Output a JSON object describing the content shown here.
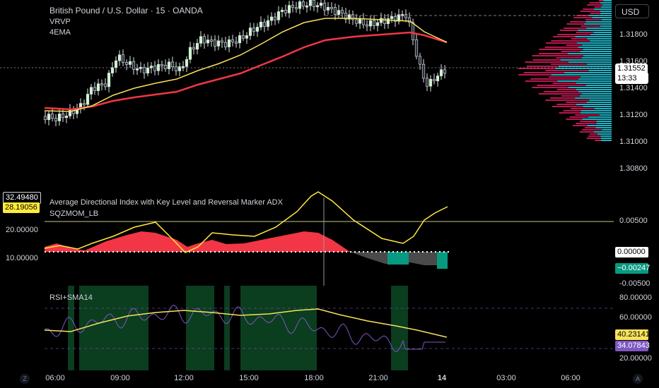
{
  "header": {
    "symbol_title": "British Pound / U.S. Dollar · 15 · OANDA",
    "indicator_vrvp": "VRVP",
    "indicator_ema": "4EMA"
  },
  "currency_button": "USD",
  "price_axis": {
    "ticks": [
      "1.31800",
      "1.31600",
      "1.31400",
      "1.31200",
      "1.31000",
      "1.30800"
    ],
    "current_price": "1.31552",
    "countdown": "13:33",
    "current_price_color": "#ffffff"
  },
  "adx_pane": {
    "title": "Average Directional Index with Key Level and Reversal Marker ADX",
    "subtitle": "SQZMOM_LB",
    "left_axis": [
      "20.00000",
      "10.00000"
    ],
    "adx_value": "32.49480",
    "adx_value2": "28.19056",
    "right_axis": [
      "0.00500",
      "-0.00500"
    ],
    "zero_label": "0.00000",
    "mom_value": "−0.00247",
    "key_level": 23
  },
  "rsi_pane": {
    "title": "RSI+SMA14",
    "right_axis": [
      "80.00000",
      "60.00000",
      "20.00000"
    ],
    "rsi_value": "40.23141",
    "sma_value": "34.07843"
  },
  "time_axis": {
    "ticks": [
      "06:00",
      "09:00",
      "12:00",
      "15:00",
      "18:00",
      "21:00",
      "14",
      "03:00",
      "06:00"
    ]
  },
  "bottom_icons": {
    "left": "Z",
    "right": "A"
  },
  "colors": {
    "ema_fast": "#f7e25c",
    "ema_slow": "#f23645",
    "bull": "#c8f7c5",
    "bear": "#2a2e39",
    "vol_up": "#26c6da",
    "vol_down": "#e91e63",
    "adx_line": "#ffeb3b",
    "mom_red": "#f23645",
    "mom_teal": "#089981",
    "rsi_line": "#7e57c2",
    "rsi_bg": "#0b3d1f"
  }
}
